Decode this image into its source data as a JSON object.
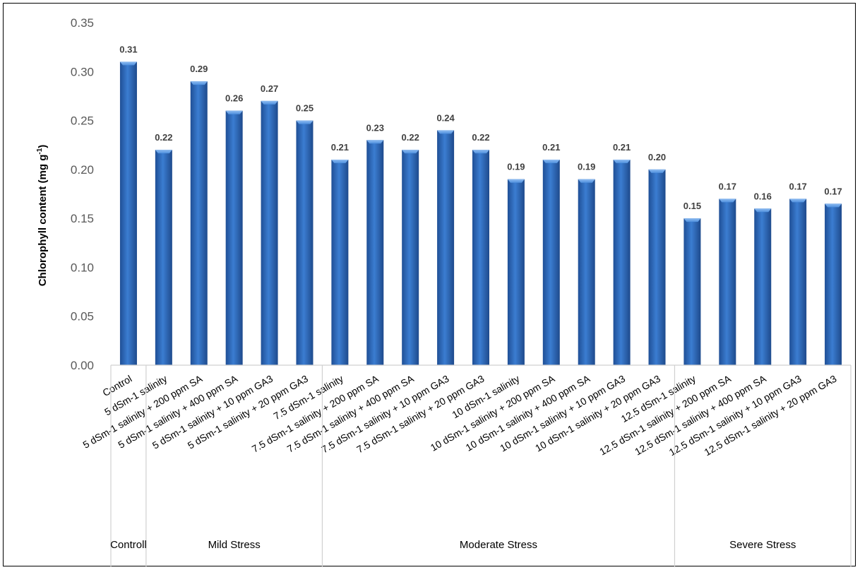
{
  "chart_data": {
    "type": "bar",
    "ylabel": "Chlorophyll content (mg g",
    "ylabel_superscript": "-1",
    "ylabel_suffix": ")",
    "ylim": [
      0,
      0.35
    ],
    "y_ticks": [
      "0.00",
      "0.05",
      "0.10",
      "0.15",
      "0.20",
      "0.25",
      "0.30",
      "0.35"
    ],
    "grid": false,
    "legend": "none",
    "bar_color": "#2E6DC0",
    "categories": [
      "Control",
      "5 dSm-1 salinity",
      "5 dSm-1 salinity + 200 ppm SA",
      "5 dSm-1 salinity + 400 ppm SA",
      "5 dSm-1 salinity + 10 ppm GA3",
      "5 dSm-1 salinity + 20 ppm GA3",
      "7.5 dSm-1 salinity",
      "7.5 dSm-1 salinity + 200 ppm SA",
      "7.5 dSm-1 salinity + 400 ppm SA",
      "7.5 dSm-1 salinity + 10 ppm GA3",
      "7.5 dSm-1 salinity + 20 ppm GA3",
      "10 dSm-1 salinity",
      "10 dSm-1 salinity + 200 ppm SA",
      "10 dSm-1 salinity + 400 ppm SA",
      "10 dSm-1 salinity + 10 ppm GA3",
      "10 dSm-1 salinity + 20 ppm GA3",
      "12.5 dSm-1 salinity",
      "12.5 dSm-1 salinity + 200 ppm SA",
      "12.5 dSm-1 salinity + 400 ppm SA",
      "12.5 dSm-1 salinity + 10 ppm GA3",
      "12.5 dSm-1 salinity + 20 ppm GA3"
    ],
    "values": [
      0.31,
      0.22,
      0.29,
      0.26,
      0.27,
      0.25,
      0.21,
      0.23,
      0.22,
      0.24,
      0.22,
      0.19,
      0.21,
      0.19,
      0.21,
      0.2,
      0.15,
      0.17,
      0.16,
      0.17,
      0.165
    ],
    "data_labels": [
      "0.31",
      "0.22",
      "0.29",
      "0.26",
      "0.27",
      "0.25",
      "0.21",
      "0.23",
      "0.22",
      "0.24",
      "0.22",
      "0.19",
      "0.21",
      "0.19",
      "0.21",
      "0.20",
      "0.15",
      "0.17",
      "0.16",
      "0.17",
      "0.17"
    ],
    "groups": [
      {
        "label": "Controll",
        "start": 0,
        "count": 1
      },
      {
        "label": "Mild Stress",
        "start": 1,
        "count": 5
      },
      {
        "label": "Moderate Stress",
        "start": 6,
        "count": 10
      },
      {
        "label": "Severe Stress",
        "start": 16,
        "count": 5
      }
    ]
  }
}
